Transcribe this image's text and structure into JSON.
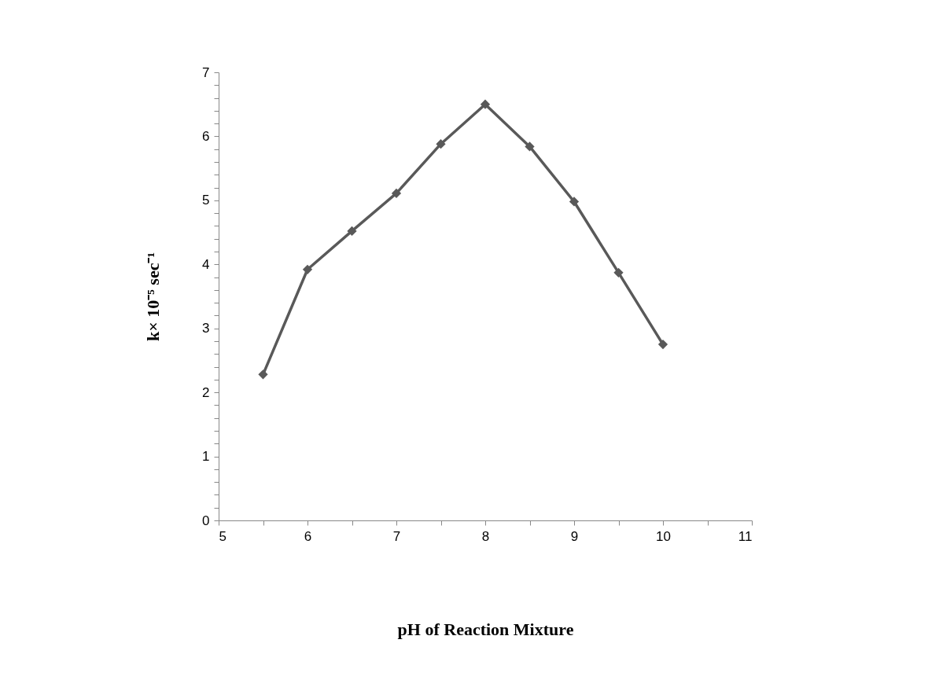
{
  "chart_data": {
    "type": "line",
    "xlabel": "pH of Reaction Mixture",
    "ylabel": "k× 10⁻⁵ sec⁻¹",
    "x": [
      5.5,
      6,
      6.5,
      7,
      7.5,
      8,
      8.5,
      9,
      9.5,
      10
    ],
    "series": [
      {
        "color": "#595959",
        "values": [
          2.28,
          3.92,
          4.52,
          5.11,
          5.88,
          6.5,
          5.84,
          4.98,
          3.87,
          2.75
        ]
      }
    ],
    "marker": "diamond",
    "line_style": "solid",
    "grid": false,
    "xlim": [
      5,
      11
    ],
    "xticks": [
      5,
      {
        "value": 5.5,
        "label": null
      },
      6,
      {
        "value": 6.5,
        "label": null
      },
      7,
      {
        "value": 7.5,
        "label": null
      },
      8,
      {
        "value": 8.5,
        "label": null
      },
      9,
      {
        "value": 9.5,
        "label": null
      },
      10,
      {
        "value": 10.5,
        "label": null
      },
      11
    ],
    "ylim": [
      0,
      7
    ],
    "yticks": [
      0,
      {
        "value": 0.2,
        "label": null
      },
      {
        "value": 0.4,
        "label": null
      },
      {
        "value": 0.6,
        "label": null
      },
      {
        "value": 0.8,
        "label": null
      },
      1,
      {
        "value": 1.2,
        "label": null
      },
      {
        "value": 1.4,
        "label": null
      },
      {
        "value": 1.6,
        "label": null
      },
      {
        "value": 1.8,
        "label": null
      },
      2,
      {
        "value": 2.2,
        "label": null
      },
      {
        "value": 2.4,
        "label": null
      },
      {
        "value": 2.6,
        "label": null
      },
      {
        "value": 2.8,
        "label": null
      },
      3,
      {
        "value": 3.2,
        "label": null
      },
      {
        "value": 3.4,
        "label": null
      },
      {
        "value": 3.6,
        "label": null
      },
      {
        "value": 3.8,
        "label": null
      },
      4,
      {
        "value": 4.2,
        "label": null
      },
      {
        "value": 4.4,
        "label": null
      },
      {
        "value": 4.6,
        "label": null
      },
      {
        "value": 4.8,
        "label": null
      },
      5,
      {
        "value": 5.2,
        "label": null
      },
      {
        "value": 5.4,
        "label": null
      },
      {
        "value": 5.6,
        "label": null
      },
      {
        "value": 5.8,
        "label": null
      },
      6,
      {
        "value": 6.2,
        "label": null
      },
      {
        "value": 6.4,
        "label": null
      },
      {
        "value": 6.6,
        "label": null
      },
      {
        "value": 6.8,
        "label": null
      },
      7
    ]
  }
}
